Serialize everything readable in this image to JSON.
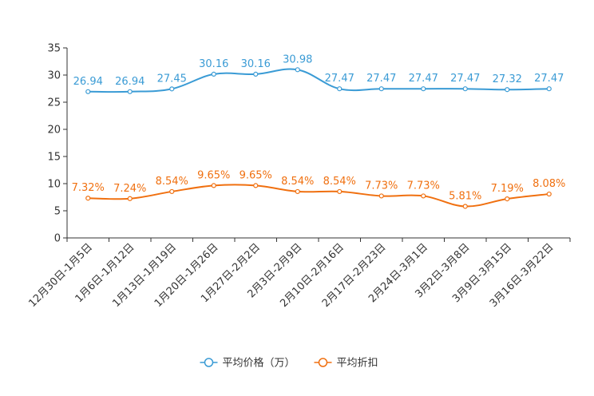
{
  "chart_data": {
    "type": "line",
    "title": "",
    "xlabel": "",
    "ylabel": "",
    "ylim": [
      0,
      35
    ],
    "yticks": [
      0,
      5,
      10,
      15,
      20,
      25,
      30,
      35
    ],
    "grid": false,
    "legend_position": "bottom-center",
    "categories": [
      "12月30日-1月5日",
      "1月6日-1月12日",
      "1月13日-1月19日",
      "1月20日-1月26日",
      "1月27日-2月2日",
      "2月3日-2月9日",
      "2月10日-2月16日",
      "2月17日-2月23日",
      "2月24日-3月1日",
      "3月2日-3月8日",
      "3月9日-3月15日",
      "3月16日-3月22日"
    ],
    "series": [
      {
        "name": "平均价格（万）",
        "color": "#3a9bd5",
        "values": [
          26.94,
          26.94,
          27.45,
          30.16,
          30.16,
          30.98,
          27.47,
          27.47,
          27.47,
          27.47,
          27.32,
          27.47
        ],
        "labels": [
          "26.94",
          "26.94",
          "27.45",
          "30.16",
          "30.16",
          "30.98",
          "27.47",
          "27.47",
          "27.47",
          "27.47",
          "27.32",
          "27.47"
        ]
      },
      {
        "name": "平均折扣",
        "color": "#f07010",
        "values": [
          7.32,
          7.24,
          8.54,
          9.65,
          9.65,
          8.54,
          8.54,
          7.73,
          7.73,
          5.81,
          7.19,
          8.08
        ],
        "labels": [
          "7.32%",
          "7.24%",
          "8.54%",
          "9.65%",
          "9.65%",
          "8.54%",
          "8.54%",
          "7.73%",
          "7.73%",
          "5.81%",
          "7.19%",
          "8.08%"
        ]
      }
    ]
  }
}
